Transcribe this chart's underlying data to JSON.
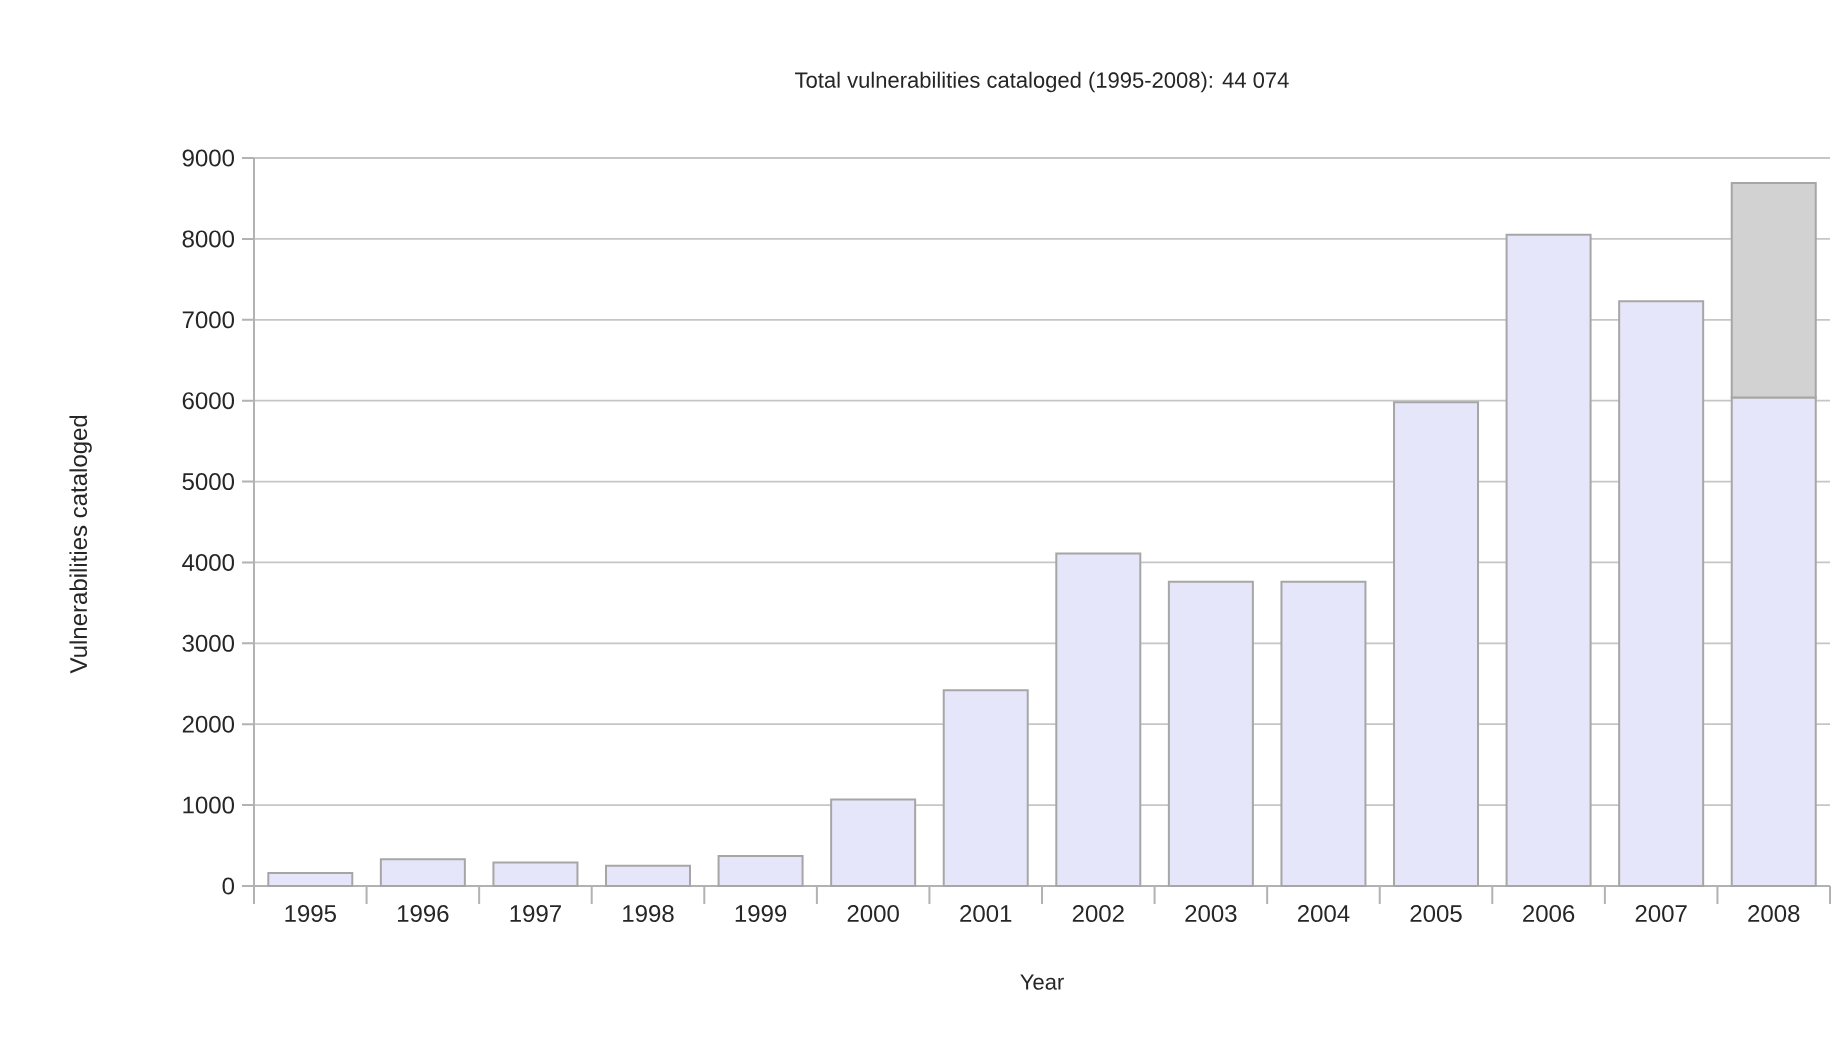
{
  "chart_data": {
    "type": "bar",
    "title": "Total vulnerabilities cataloged (1995-2008): 44 074",
    "xlabel": "Year",
    "ylabel": "Vulnerabilities cataloged",
    "categories": [
      "1995",
      "1996",
      "1997",
      "1998",
      "1999",
      "2000",
      "2001",
      "2002",
      "2003",
      "2004",
      "2005",
      "2006",
      "2007",
      "2008"
    ],
    "stacked": true,
    "series": [
      {
        "color": "#e6e6fa",
        "values": [
          160,
          330,
          290,
          250,
          370,
          1070,
          2420,
          4110,
          3760,
          3760,
          5980,
          8050,
          7230,
          6040
        ]
      },
      {
        "color": "#d2d2d2",
        "values": [
          null,
          null,
          null,
          null,
          null,
          null,
          null,
          null,
          null,
          null,
          null,
          null,
          null,
          2650
        ]
      }
    ],
    "ylim": [
      0,
      9000
    ],
    "yticks": [
      0,
      1000,
      2000,
      3000,
      4000,
      5000,
      6000,
      7000,
      8000,
      9000
    ],
    "grid": "y"
  }
}
